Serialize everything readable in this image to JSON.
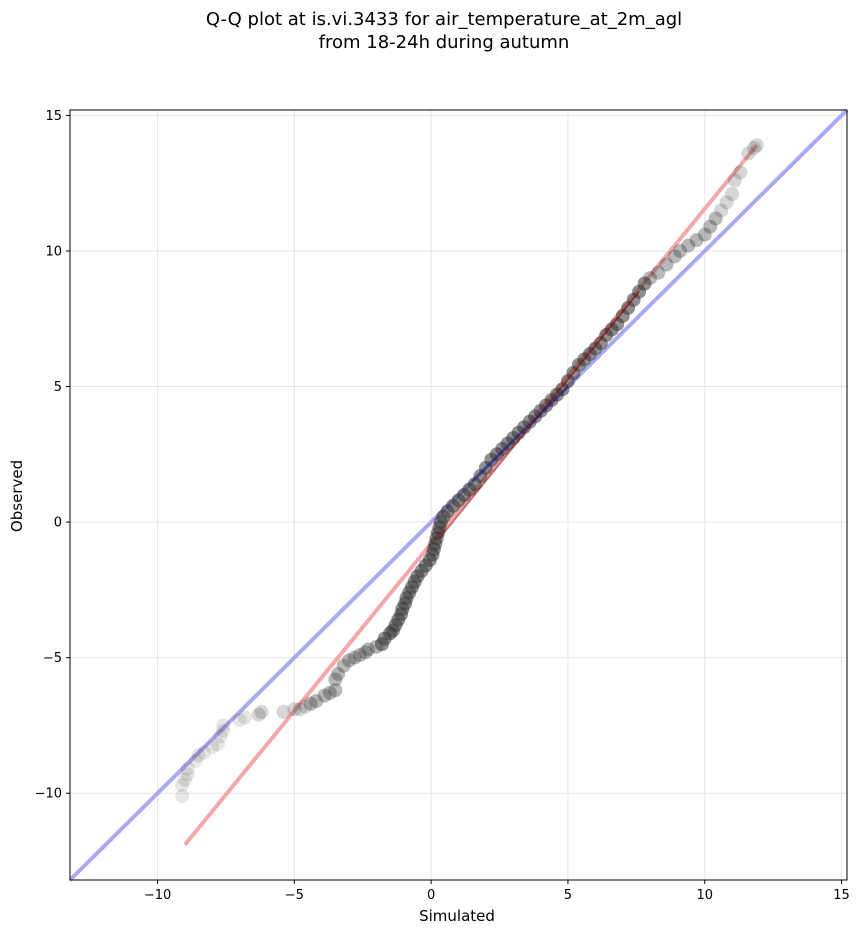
{
  "chart_data": {
    "type": "scatter",
    "title_lines": [
      "Q-Q plot at is.vi.3433 for air_temperature_at_2m_agl",
      "from 18-24h during autumn"
    ],
    "xlabel": "Simulated",
    "ylabel": "Observed",
    "xlim": [
      -13.2,
      15.2
    ],
    "ylim": [
      -13.2,
      15.2
    ],
    "xticks": [
      -10,
      -5,
      0,
      5,
      10,
      15
    ],
    "yticks": [
      -10,
      -5,
      0,
      5,
      10,
      15
    ],
    "xtick_labels": [
      "−10",
      "−5",
      "0",
      "5",
      "10",
      "15"
    ],
    "ytick_labels": [
      "−10",
      "−5",
      "0",
      "5",
      "10",
      "15"
    ],
    "grid": true,
    "colors": {
      "points": "#333333",
      "identity_line": "#aaaaf2",
      "fit_line": "#f4a8a8",
      "fit_inner": "#8b0000",
      "identity_inner": "#1a1a8c"
    },
    "reference_lines": [
      {
        "kind": "identity",
        "from": [
          -13.2,
          -13.2
        ],
        "to": [
          15.2,
          15.2
        ]
      },
      {
        "kind": "fit",
        "from": [
          -9.0,
          -11.9
        ],
        "to": [
          11.9,
          13.9
        ]
      }
    ],
    "points": [
      [
        -9.1,
        -10.1
      ],
      [
        -9.1,
        -9.7
      ],
      [
        -9.0,
        -9.5
      ],
      [
        -8.9,
        -9.3
      ],
      [
        -8.9,
        -9.1
      ],
      [
        -8.6,
        -8.8
      ],
      [
        -8.5,
        -8.6
      ],
      [
        -8.3,
        -8.5
      ],
      [
        -8.0,
        -8.3
      ],
      [
        -7.8,
        -8.2
      ],
      [
        -7.7,
        -7.9
      ],
      [
        -7.6,
        -7.7
      ],
      [
        -7.6,
        -7.5
      ],
      [
        -7.0,
        -7.3
      ],
      [
        -6.8,
        -7.2
      ],
      [
        -6.3,
        -7.1
      ],
      [
        -6.2,
        -7.0
      ],
      [
        -5.4,
        -7.0
      ],
      [
        -5.0,
        -6.9
      ],
      [
        -4.8,
        -6.9
      ],
      [
        -4.6,
        -6.8
      ],
      [
        -4.4,
        -6.7
      ],
      [
        -4.2,
        -6.6
      ],
      [
        -3.9,
        -6.4
      ],
      [
        -3.7,
        -6.3
      ],
      [
        -3.5,
        -6.2
      ],
      [
        -3.5,
        -5.8
      ],
      [
        -3.4,
        -5.6
      ],
      [
        -3.2,
        -5.3
      ],
      [
        -3.0,
        -5.1
      ],
      [
        -2.8,
        -5.0
      ],
      [
        -2.6,
        -4.9
      ],
      [
        -2.4,
        -4.8
      ],
      [
        -2.3,
        -4.7
      ],
      [
        -2.0,
        -4.6
      ],
      [
        -1.8,
        -4.5
      ],
      [
        -1.7,
        -4.3
      ],
      [
        -1.5,
        -4.1
      ],
      [
        -1.4,
        -4.0
      ],
      [
        -1.3,
        -3.8
      ],
      [
        -1.2,
        -3.6
      ],
      [
        -1.1,
        -3.4
      ],
      [
        -1.05,
        -3.2
      ],
      [
        -0.95,
        -3.0
      ],
      [
        -0.9,
        -2.8
      ],
      [
        -0.8,
        -2.6
      ],
      [
        -0.7,
        -2.4
      ],
      [
        -0.6,
        -2.2
      ],
      [
        -0.5,
        -2.0
      ],
      [
        -0.35,
        -1.8
      ],
      [
        -0.2,
        -1.6
      ],
      [
        -0.05,
        -1.4
      ],
      [
        0.05,
        -1.2
      ],
      [
        0.1,
        -1.0
      ],
      [
        0.15,
        -0.8
      ],
      [
        0.2,
        -0.6
      ],
      [
        0.25,
        -0.4
      ],
      [
        0.3,
        -0.2
      ],
      [
        0.35,
        0.0
      ],
      [
        0.45,
        0.2
      ],
      [
        0.6,
        0.4
      ],
      [
        0.8,
        0.6
      ],
      [
        1.0,
        0.8
      ],
      [
        1.2,
        1.0
      ],
      [
        1.4,
        1.2
      ],
      [
        1.6,
        1.4
      ],
      [
        1.8,
        1.7
      ],
      [
        2.0,
        2.0
      ],
      [
        2.2,
        2.3
      ],
      [
        2.4,
        2.5
      ],
      [
        2.6,
        2.7
      ],
      [
        2.8,
        2.9
      ],
      [
        3.0,
        3.1
      ],
      [
        3.2,
        3.3
      ],
      [
        3.4,
        3.5
      ],
      [
        3.6,
        3.7
      ],
      [
        3.8,
        3.9
      ],
      [
        4.0,
        4.1
      ],
      [
        4.2,
        4.3
      ],
      [
        4.4,
        4.5
      ],
      [
        4.6,
        4.7
      ],
      [
        4.8,
        4.9
      ],
      [
        5.0,
        5.2
      ],
      [
        5.2,
        5.5
      ],
      [
        5.4,
        5.8
      ],
      [
        5.6,
        6.0
      ],
      [
        5.8,
        6.2
      ],
      [
        6.0,
        6.4
      ],
      [
        6.2,
        6.6
      ],
      [
        6.4,
        6.9
      ],
      [
        6.6,
        7.1
      ],
      [
        6.8,
        7.3
      ],
      [
        7.0,
        7.6
      ],
      [
        7.2,
        7.9
      ],
      [
        7.4,
        8.2
      ],
      [
        7.6,
        8.5
      ],
      [
        7.8,
        8.8
      ],
      [
        8.0,
        9.0
      ],
      [
        8.3,
        9.2
      ],
      [
        8.6,
        9.5
      ],
      [
        8.9,
        9.8
      ],
      [
        9.1,
        10.0
      ],
      [
        9.4,
        10.2
      ],
      [
        9.7,
        10.4
      ],
      [
        10.0,
        10.6
      ],
      [
        10.2,
        10.9
      ],
      [
        10.4,
        11.2
      ],
      [
        10.6,
        11.5
      ],
      [
        10.8,
        11.8
      ],
      [
        11.0,
        12.1
      ],
      [
        11.1,
        12.6
      ],
      [
        11.3,
        12.9
      ],
      [
        11.6,
        13.6
      ],
      [
        11.8,
        13.8
      ],
      [
        11.9,
        13.9
      ]
    ]
  }
}
